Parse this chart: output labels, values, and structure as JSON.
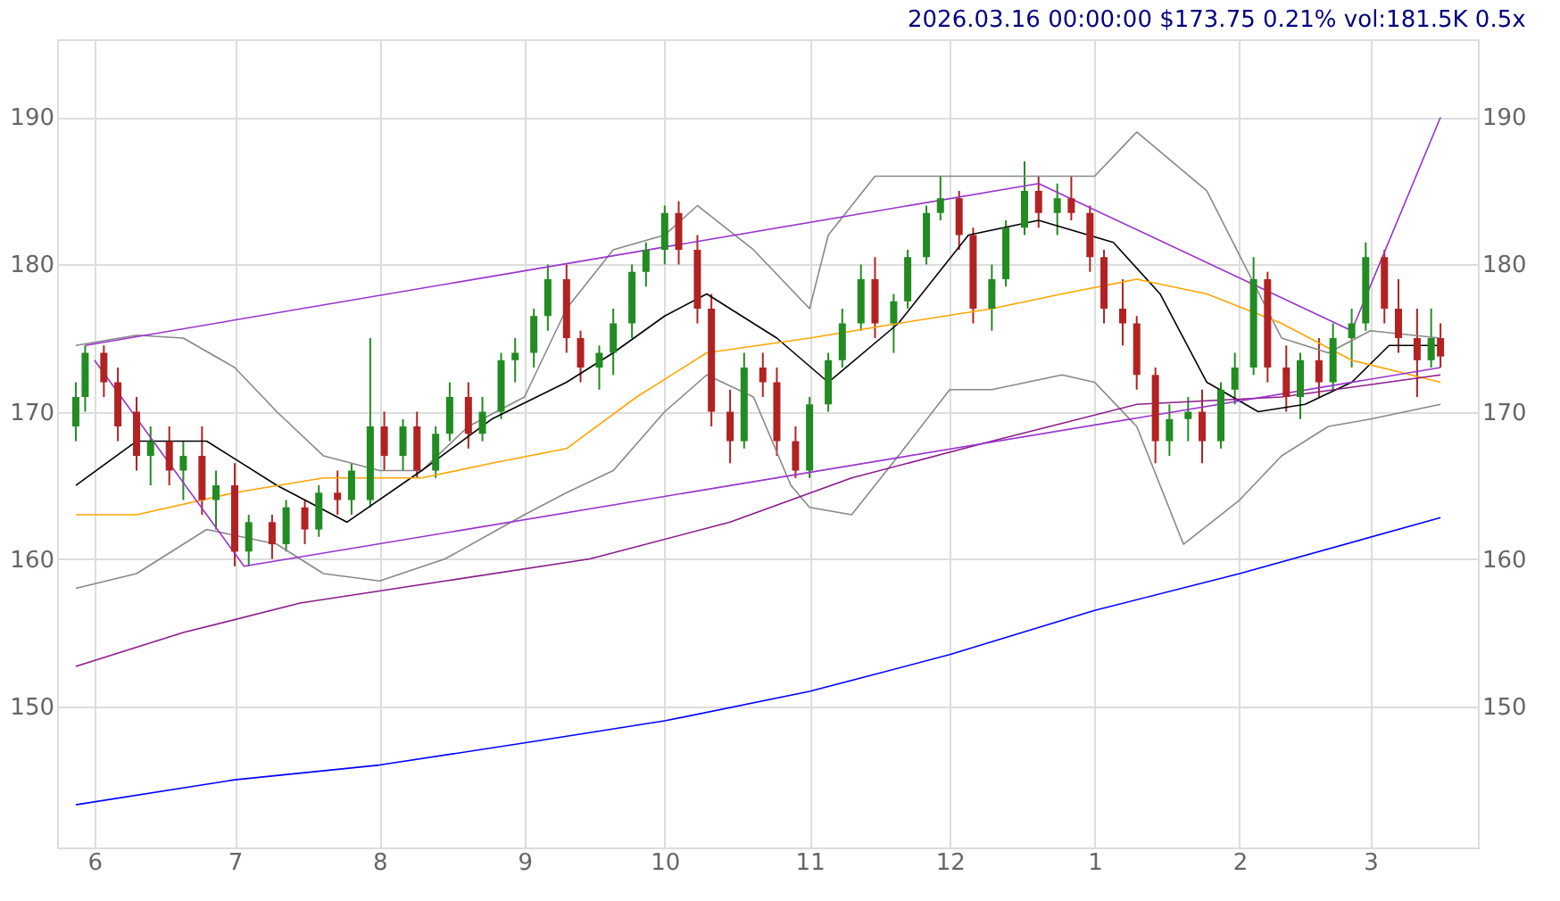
{
  "chart_data": {
    "type": "candlestick",
    "annotations": [
      "2026.03.16 00:00:00 $173.75 0.21% vol:181.5K 0.5x"
    ],
    "x": [
      "2025-05-28",
      "2025-05-30",
      "2025-06-03",
      "2025-06-06",
      "2025-06-10",
      "2025-06-13",
      "2025-06-17",
      "2025-06-20",
      "2025-06-24",
      "2025-06-27",
      "2025-07-01",
      "2025-07-04",
      "2025-07-09",
      "2025-07-12",
      "2025-07-16",
      "2025-07-19",
      "2025-07-23",
      "2025-07-26",
      "2025-07-30",
      "2025-08-02",
      "2025-08-06",
      "2025-08-09",
      "2025-08-13",
      "2025-08-16",
      "2025-08-20",
      "2025-08-23",
      "2025-08-27",
      "2025-08-30",
      "2025-09-03",
      "2025-09-06",
      "2025-09-10",
      "2025-09-13",
      "2025-09-17",
      "2025-09-20",
      "2025-09-24",
      "2025-09-27",
      "2025-10-01",
      "2025-10-04",
      "2025-10-08",
      "2025-10-11",
      "2025-10-15",
      "2025-10-18",
      "2025-10-22",
      "2025-10-25",
      "2025-10-29",
      "2025-11-01",
      "2025-11-05",
      "2025-11-08",
      "2025-11-12",
      "2025-11-15",
      "2025-11-19",
      "2025-11-22",
      "2025-11-26",
      "2025-11-29",
      "2025-12-03",
      "2025-12-06",
      "2025-12-10",
      "2025-12-13",
      "2025-12-17",
      "2025-12-20",
      "2025-12-24",
      "2025-12-27",
      "2025-12-31",
      "2026-01-03",
      "2026-01-07",
      "2026-01-10",
      "2026-01-14",
      "2026-01-17",
      "2026-01-21",
      "2026-01-24",
      "2026-01-28",
      "2026-01-31",
      "2026-02-04",
      "2026-02-07",
      "2026-02-11",
      "2026-02-14",
      "2026-02-18",
      "2026-02-21",
      "2026-02-25",
      "2026-02-28",
      "2026-03-04",
      "2026-03-07",
      "2026-03-11",
      "2026-03-14",
      "2026-03-16"
    ],
    "ohlc": [
      [
        169,
        172,
        168,
        171
      ],
      [
        171,
        174.5,
        170,
        174
      ],
      [
        174,
        174.5,
        171,
        172
      ],
      [
        172,
        173,
        168,
        169
      ],
      [
        170,
        171,
        166,
        167
      ],
      [
        167,
        169,
        165,
        168
      ],
      [
        168,
        169,
        165,
        166
      ],
      [
        166,
        168,
        164,
        167
      ],
      [
        167,
        169,
        163,
        164
      ],
      [
        164,
        166,
        162,
        165
      ],
      [
        165,
        166.5,
        159.5,
        160.5
      ],
      [
        160.5,
        163,
        159.5,
        162.5
      ],
      [
        162.5,
        163,
        160,
        161
      ],
      [
        161,
        164,
        160.5,
        163.5
      ],
      [
        163.5,
        164,
        161,
        162
      ],
      [
        162,
        165,
        161.5,
        164.5
      ],
      [
        164.5,
        166,
        163,
        164
      ],
      [
        164,
        166.5,
        163,
        166
      ],
      [
        164,
        175,
        163.5,
        169
      ],
      [
        169,
        170,
        166,
        167
      ],
      [
        167,
        169.5,
        166,
        169
      ],
      [
        169,
        170,
        165.5,
        166
      ],
      [
        166,
        169,
        165.5,
        168.5
      ],
      [
        168.5,
        172,
        168,
        171
      ],
      [
        171,
        172,
        167.5,
        168.5
      ],
      [
        168.5,
        171,
        168,
        170
      ],
      [
        170,
        174,
        169.5,
        173.5
      ],
      [
        173.5,
        175,
        172,
        174
      ],
      [
        174,
        177,
        173,
        176.5
      ],
      [
        176.5,
        180,
        175.5,
        179
      ],
      [
        179,
        180,
        174,
        175
      ],
      [
        175,
        175.5,
        172,
        173
      ],
      [
        173,
        174.5,
        171.5,
        174
      ],
      [
        174,
        177,
        172.5,
        176
      ],
      [
        176,
        180,
        175,
        179.5
      ],
      [
        179.5,
        181.5,
        178.5,
        181
      ],
      [
        181,
        184,
        180,
        183.5
      ],
      [
        183.5,
        184.3,
        180,
        181
      ],
      [
        181,
        182,
        176,
        177
      ],
      [
        177,
        178,
        169,
        170
      ],
      [
        170,
        171.5,
        166.5,
        168
      ],
      [
        168,
        174,
        167.5,
        173
      ],
      [
        173,
        174,
        171,
        172
      ],
      [
        172,
        173,
        167,
        168
      ],
      [
        168,
        169,
        165.5,
        166
      ],
      [
        166,
        171,
        165.5,
        170.5
      ],
      [
        170.5,
        174,
        170,
        173.5
      ],
      [
        173.5,
        177,
        173,
        176
      ],
      [
        176,
        180,
        175.5,
        179
      ],
      [
        179,
        180.5,
        175,
        176
      ],
      [
        176,
        178,
        174,
        177.5
      ],
      [
        177.5,
        181,
        177,
        180.5
      ],
      [
        180.5,
        184,
        180,
        183.5
      ],
      [
        183.5,
        186,
        183,
        184.5
      ],
      [
        184.5,
        185,
        181,
        182
      ],
      [
        182,
        182.5,
        176,
        177
      ],
      [
        177,
        180,
        175.5,
        179
      ],
      [
        179,
        183,
        178.5,
        182.5
      ],
      [
        182.5,
        187,
        182,
        185
      ],
      [
        185,
        186,
        182.5,
        183.5
      ],
      [
        183.5,
        185.5,
        182,
        184.5
      ],
      [
        184.5,
        186,
        183,
        183.5
      ],
      [
        183.5,
        184,
        179.5,
        180.5
      ],
      [
        180.5,
        181,
        176,
        177
      ],
      [
        177,
        179,
        174.5,
        176
      ],
      [
        176,
        176.5,
        171.5,
        172.5
      ],
      [
        172.5,
        173,
        166.5,
        168
      ],
      [
        168,
        170.5,
        167,
        169.5
      ],
      [
        169.5,
        171,
        168,
        170
      ],
      [
        170,
        171.5,
        166.5,
        168
      ],
      [
        168,
        172,
        167.5,
        171.5
      ],
      [
        171.5,
        174,
        170.5,
        173
      ],
      [
        173,
        180.5,
        172.5,
        179
      ],
      [
        179,
        179.5,
        172,
        173
      ],
      [
        173,
        174.5,
        170,
        171
      ],
      [
        171,
        174,
        169.5,
        173.5
      ],
      [
        173.5,
        175,
        171,
        172
      ],
      [
        172,
        176,
        171.5,
        175
      ],
      [
        175,
        177,
        173,
        176
      ],
      [
        176,
        181.5,
        175.5,
        180.5
      ],
      [
        180.5,
        181,
        176,
        177
      ],
      [
        177,
        179,
        174,
        175
      ],
      [
        175,
        177,
        171,
        173.5
      ],
      [
        173.5,
        177,
        173,
        175
      ],
      [
        175,
        176,
        173,
        173.75
      ]
    ],
    "series": [
      {
        "type": "line",
        "color": "#888888",
        "x": [
          "2025-05-28",
          "2025-06-10",
          "2025-06-20",
          "2025-07-01",
          "2025-07-10",
          "2025-07-20",
          "2025-08-01",
          "2025-08-10",
          "2025-08-20",
          "2025-09-01",
          "2025-09-10",
          "2025-09-20",
          "2025-10-01",
          "2025-10-08",
          "2025-10-20",
          "2025-11-01",
          "2025-11-05",
          "2025-11-15",
          "2025-12-01",
          "2025-12-15",
          "2026-01-01",
          "2026-01-10",
          "2026-01-25",
          "2026-02-10",
          "2026-02-20",
          "2026-03-01",
          "2026-03-16"
        ],
        "values": [
          174.5,
          175.2,
          175,
          173,
          170,
          167,
          166,
          166,
          169,
          171,
          177,
          181,
          182,
          184,
          181,
          177,
          182,
          186,
          186,
          186,
          186,
          189,
          185,
          175,
          174,
          175.5,
          175
        ]
      },
      {
        "type": "line",
        "color": "#888888",
        "x": [
          "2025-05-28",
          "2025-06-10",
          "2025-06-25",
          "2025-07-10",
          "2025-07-20",
          "2025-08-01",
          "2025-08-15",
          "2025-09-01",
          "2025-09-10",
          "2025-09-20",
          "2025-10-01",
          "2025-10-10",
          "2025-10-20",
          "2025-10-28",
          "2025-11-01",
          "2025-11-10",
          "2025-11-20",
          "2025-12-01",
          "2025-12-10",
          "2025-12-25",
          "2026-01-01",
          "2026-01-10",
          "2026-01-20",
          "2026-02-01",
          "2026-02-10",
          "2026-02-20",
          "2026-03-01",
          "2026-03-16"
        ],
        "values": [
          158,
          159,
          162,
          161,
          159,
          158.5,
          160,
          163,
          164.5,
          166,
          170,
          172.5,
          171,
          165,
          163.5,
          163,
          167,
          171.5,
          171.5,
          172.5,
          172,
          169,
          161,
          164,
          167,
          169,
          169.5,
          170.5
        ]
      },
      {
        "type": "line",
        "color": "#000000",
        "x": [
          "2025-05-28",
          "2025-06-10",
          "2025-06-25",
          "2025-07-10",
          "2025-07-25",
          "2025-08-10",
          "2025-08-25",
          "2025-09-10",
          "2025-09-20",
          "2025-10-01",
          "2025-10-10",
          "2025-10-25",
          "2025-11-05",
          "2025-11-20",
          "2025-12-05",
          "2025-12-20",
          "2026-01-05",
          "2026-01-15",
          "2026-01-25",
          "2026-02-05",
          "2026-02-15",
          "2026-02-25",
          "2026-03-05",
          "2026-03-16"
        ],
        "values": [
          165,
          168,
          168,
          165,
          162.5,
          166,
          169.5,
          172,
          174,
          176.5,
          178,
          175,
          172,
          176,
          182,
          183,
          181.5,
          178,
          172,
          170,
          170.5,
          172,
          174.5,
          174.5
        ]
      },
      {
        "type": "line",
        "color": "#ffa500",
        "x": [
          "2025-05-28",
          "2025-06-10",
          "2025-07-01",
          "2025-07-20",
          "2025-08-10",
          "2025-08-25",
          "2025-09-10",
          "2025-09-25",
          "2025-10-10",
          "2025-11-01",
          "2025-11-20",
          "2025-12-10",
          "2025-12-25",
          "2026-01-10",
          "2026-01-25",
          "2026-02-10",
          "2026-02-25",
          "2026-03-16"
        ],
        "values": [
          163,
          163,
          164.5,
          165.5,
          165.5,
          166.5,
          167.5,
          171,
          174,
          175,
          176,
          177,
          178,
          179,
          178,
          176,
          173.5,
          172
        ]
      },
      {
        "type": "line",
        "color": "#8b1a8b",
        "x": [
          "2025-05-28",
          "2025-06-20",
          "2025-07-15",
          "2025-08-15",
          "2025-09-15",
          "2025-10-15",
          "2025-11-10",
          "2025-12-10",
          "2026-01-10",
          "2026-02-10",
          "2026-03-16"
        ],
        "values": [
          152.7,
          155,
          157,
          158.5,
          160,
          162.5,
          165.5,
          168,
          170.5,
          171,
          172.5
        ]
      },
      {
        "type": "line",
        "color": "#9932cc",
        "x": [
          "2025-06-01",
          "2025-07-03",
          "2026-03-16"
        ],
        "values": [
          173.5,
          159.5,
          173
        ]
      },
      {
        "type": "line",
        "color": "#9932cc",
        "x": [
          "2025-05-30",
          "2025-12-20",
          "2026-02-25",
          "2026-03-16"
        ],
        "values": [
          174.5,
          185.5,
          175.5,
          190
        ]
      },
      {
        "type": "line",
        "color": "#0000ff",
        "x": [
          "2025-05-28",
          "2025-07-01",
          "2025-08-01",
          "2025-09-01",
          "2025-10-01",
          "2025-11-01",
          "2025-12-01",
          "2026-01-01",
          "2026-02-01",
          "2026-03-16"
        ],
        "values": [
          143.3,
          145,
          146,
          147.5,
          149,
          151,
          153.5,
          156.5,
          159,
          162.8
        ]
      }
    ],
    "xlim": [
      "2025-05-24",
      "2026-03-24"
    ],
    "xticks": [
      {
        "value": "2025-06-01",
        "label": "6"
      },
      {
        "value": "2025-07-01",
        "label": "7"
      },
      {
        "value": "2025-08-01",
        "label": "8"
      },
      {
        "value": "2025-09-01",
        "label": "9"
      },
      {
        "value": "2025-10-01",
        "label": "10"
      },
      {
        "value": "2025-11-01",
        "label": "11"
      },
      {
        "value": "2025-12-01",
        "label": "12"
      },
      {
        "value": "2026-01-01",
        "label": "1"
      },
      {
        "value": "2026-02-01",
        "label": "2"
      },
      {
        "value": "2026-03-01",
        "label": "3"
      }
    ],
    "ylim": [
      140.4,
      195.3
    ],
    "yticks": [
      150,
      160,
      170,
      180,
      190
    ],
    "y2lim": [
      140.4,
      195.3
    ],
    "y2ticks": [
      150,
      160,
      170,
      180,
      190
    ],
    "grid": true
  }
}
